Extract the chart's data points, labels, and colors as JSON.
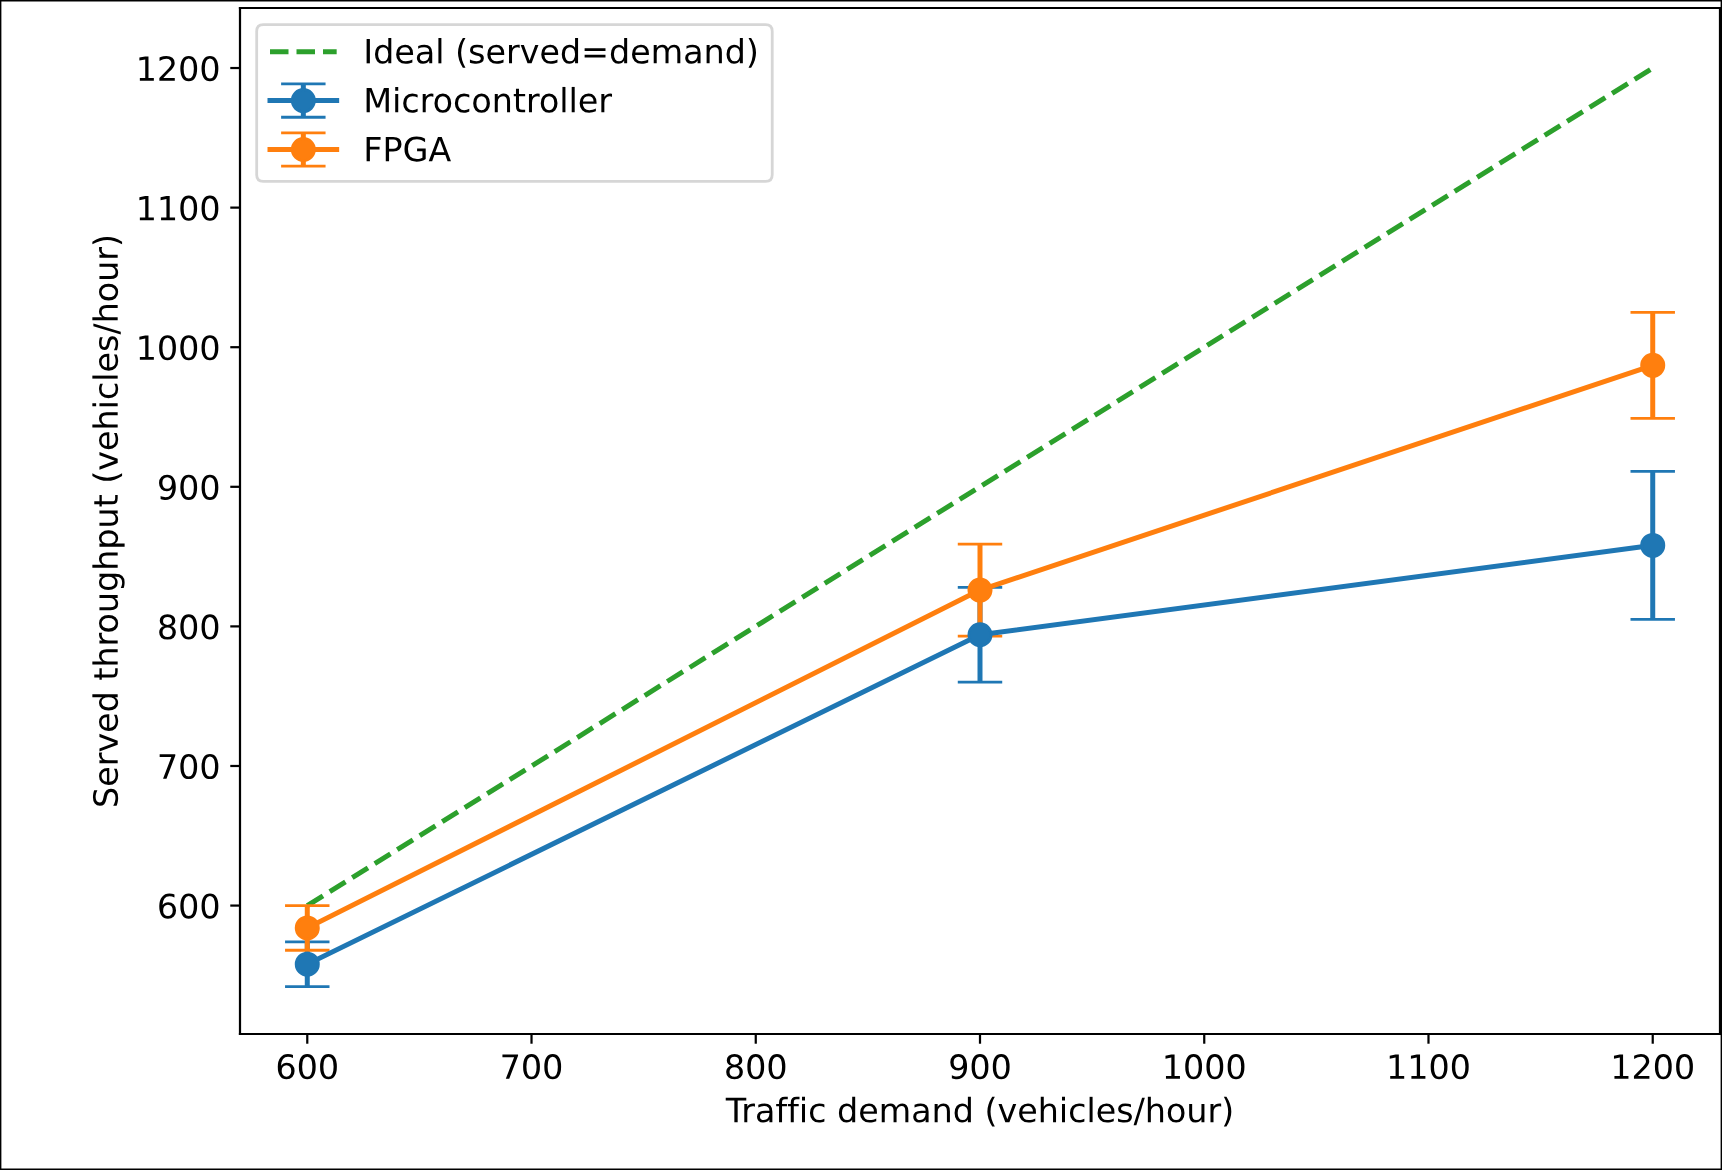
{
  "chart_data": {
    "type": "line",
    "xlabel": "Traffic demand (vehicles/hour)",
    "ylabel": "Served throughput (vehicles/hour)",
    "x": [
      600,
      900,
      1200
    ],
    "xlim": [
      570,
      1230
    ],
    "ylim": [
      508,
      1243
    ],
    "xticks": [
      600,
      700,
      800,
      900,
      1000,
      1100,
      1200
    ],
    "yticks": [
      600,
      700,
      800,
      900,
      1000,
      1100,
      1200
    ],
    "marker": "circle",
    "legend": "top left",
    "grid": false,
    "series": [
      {
        "name": "Ideal (served=demand)",
        "color": "#2ca02c",
        "values": [
          600,
          900,
          1200
        ],
        "line_style": "dashed",
        "marker": "none"
      },
      {
        "name": "Microcontroller",
        "color": "#1f77b4",
        "values": [
          558,
          794,
          858
        ],
        "errors": [
          16,
          34,
          53
        ]
      },
      {
        "name": "FPGA",
        "color": "#ff7f0e",
        "values": [
          584,
          826,
          987
        ],
        "errors": [
          16,
          33,
          38
        ]
      }
    ]
  }
}
